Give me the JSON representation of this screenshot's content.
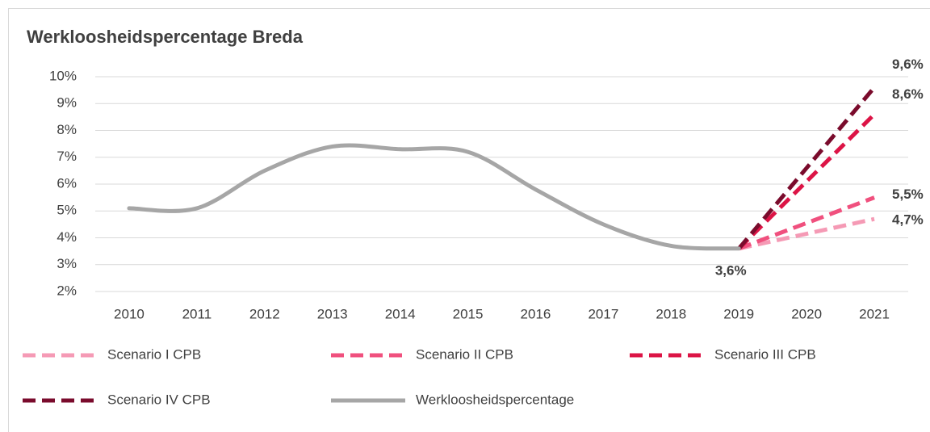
{
  "chart_data": {
    "type": "line",
    "title": "Werkloosheidspercentage Breda",
    "categories": [
      "2010",
      "2011",
      "2012",
      "2013",
      "2014",
      "2015",
      "2016",
      "2017",
      "2018",
      "2019",
      "2020",
      "2021"
    ],
    "ylim": [
      2,
      10
    ],
    "yticks": [
      {
        "value": 2,
        "label": "2%"
      },
      {
        "value": 3,
        "label": "3%"
      },
      {
        "value": 4,
        "label": "4%"
      },
      {
        "value": 5,
        "label": "5%"
      },
      {
        "value": 6,
        "label": "6%"
      },
      {
        "value": 7,
        "label": "7%"
      },
      {
        "value": 8,
        "label": "8%"
      },
      {
        "value": 9,
        "label": "9%"
      },
      {
        "value": 10,
        "label": "10%"
      }
    ],
    "grid": true,
    "series": [
      {
        "name": "Scenario I CPB",
        "color": "#f59ab5",
        "dashed": true,
        "values": [
          null,
          null,
          null,
          null,
          null,
          null,
          null,
          null,
          null,
          3.6,
          4.15,
          4.7
        ],
        "value_labels": [
          null,
          null,
          null,
          null,
          null,
          null,
          null,
          null,
          null,
          null,
          null,
          "4,7%"
        ]
      },
      {
        "name": "Scenario II CPB",
        "color": "#f0507e",
        "dashed": true,
        "values": [
          null,
          null,
          null,
          null,
          null,
          null,
          null,
          null,
          null,
          3.6,
          4.55,
          5.5
        ],
        "value_labels": [
          null,
          null,
          null,
          null,
          null,
          null,
          null,
          null,
          null,
          null,
          null,
          "5,5%"
        ]
      },
      {
        "name": "Scenario III CPB",
        "color": "#dc1446",
        "dashed": true,
        "values": [
          null,
          null,
          null,
          null,
          null,
          null,
          null,
          null,
          null,
          3.6,
          6.1,
          8.6
        ],
        "value_labels": [
          null,
          null,
          null,
          null,
          null,
          null,
          null,
          null,
          null,
          null,
          null,
          "8,6%"
        ]
      },
      {
        "name": "Scenario IV CPB",
        "color": "#7a0b2c",
        "dashed": true,
        "values": [
          null,
          null,
          null,
          null,
          null,
          null,
          null,
          null,
          null,
          3.6,
          6.6,
          9.6
        ],
        "value_labels": [
          null,
          null,
          null,
          null,
          null,
          null,
          null,
          null,
          null,
          null,
          null,
          "9,6%"
        ]
      },
      {
        "name": "Werkloosheidspercentage",
        "color": "#a6a6a6",
        "dashed": false,
        "smooth": true,
        "values": [
          5.1,
          5.1,
          6.5,
          7.4,
          7.3,
          7.2,
          5.8,
          4.5,
          3.7,
          3.6,
          null,
          null
        ],
        "value_labels": [
          null,
          null,
          null,
          null,
          null,
          null,
          null,
          null,
          null,
          "3,6%",
          null,
          null
        ]
      }
    ]
  }
}
